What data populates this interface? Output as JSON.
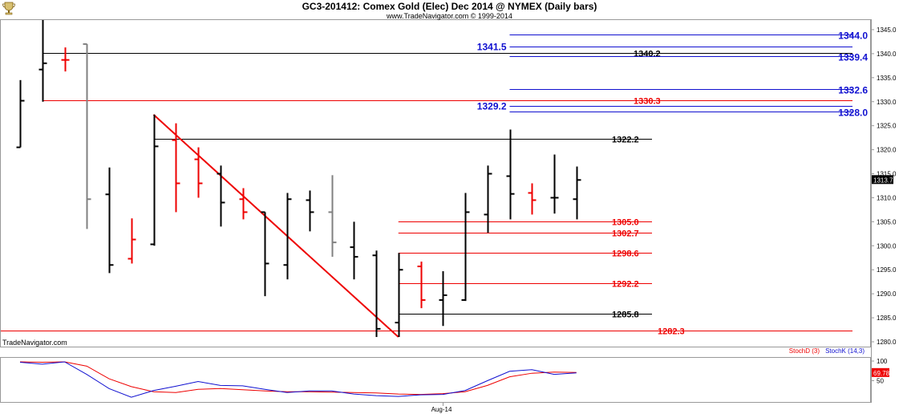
{
  "header": {
    "title": "GC3-201412:  Comex Gold (Elec) Dec 2014 @ NYMEX  (Daily bars)",
    "subtitle": "www.TradeNavigator.com © 1999-2014",
    "watermark": "TradeNavigator.com",
    "logo_icon": "trophy-icon"
  },
  "chart_data": [
    {
      "type": "ohlc",
      "ylim": [
        1279,
        1347
      ],
      "yticks": [
        "1345.0",
        "1340.0",
        "1335.0",
        "1330.0",
        "1325.0",
        "1320.0",
        "1315.0",
        "1310.0",
        "1305.0",
        "1300.0",
        "1295.0",
        "1290.0",
        "1285.0",
        "1280.0"
      ],
      "xticks": [
        {
          "label": "Aug-14",
          "bar": 19
        }
      ],
      "last_price": "1313.7",
      "colors": {
        "up": "#000000",
        "down": "#ee0000",
        "neutral": "#808080"
      },
      "bars": [
        {
          "o": 1320.5,
          "h": 1334.5,
          "l": 1320.5,
          "c": 1330.2,
          "color": "up"
        },
        {
          "o": 1336.7,
          "h": 1347.0,
          "l": 1330.0,
          "c": 1338.0,
          "color": "up"
        },
        {
          "o": 1338.7,
          "h": 1341.3,
          "l": 1336.3,
          "c": 1338.7,
          "color": "down"
        },
        {
          "o": 1342.0,
          "h": 1342.0,
          "l": 1303.5,
          "c": 1309.7,
          "color": "neutral"
        },
        {
          "o": 1310.7,
          "h": 1316.3,
          "l": 1294.3,
          "c": 1296.0,
          "color": "up"
        },
        {
          "o": 1297.3,
          "h": 1305.7,
          "l": 1296.3,
          "c": 1301.3,
          "color": "down"
        },
        {
          "o": 1300.3,
          "h": 1327.3,
          "l": 1300.0,
          "c": 1320.7,
          "color": "up"
        },
        {
          "o": 1322.0,
          "h": 1325.5,
          "l": 1307.0,
          "c": 1313.0,
          "color": "down"
        },
        {
          "o": 1318.0,
          "h": 1320.5,
          "l": 1310.0,
          "c": 1313.0,
          "color": "down"
        },
        {
          "o": 1315.0,
          "h": 1316.7,
          "l": 1304.0,
          "c": 1309.0,
          "color": "up"
        },
        {
          "o": 1309.7,
          "h": 1312.0,
          "l": 1305.5,
          "c": 1307.0,
          "color": "down"
        },
        {
          "o": 1307.0,
          "h": 1307.0,
          "l": 1289.5,
          "c": 1296.3,
          "color": "up"
        },
        {
          "o": 1296.0,
          "h": 1311.0,
          "l": 1293.0,
          "c": 1309.7,
          "color": "up"
        },
        {
          "o": 1309.5,
          "h": 1311.5,
          "l": 1303.0,
          "c": 1307.0,
          "color": "up"
        },
        {
          "o": 1307.0,
          "h": 1314.7,
          "l": 1297.7,
          "c": 1300.7,
          "color": "neutral"
        },
        {
          "o": 1299.7,
          "h": 1305.0,
          "l": 1293.0,
          "c": 1297.7,
          "color": "up"
        },
        {
          "o": 1298.0,
          "h": 1299.0,
          "l": 1281.0,
          "c": 1282.7,
          "color": "up"
        },
        {
          "o": 1284.0,
          "h": 1298.5,
          "l": 1281.0,
          "c": 1295.0,
          "color": "up"
        },
        {
          "o": 1295.7,
          "h": 1296.7,
          "l": 1287.0,
          "c": 1288.7,
          "color": "down"
        },
        {
          "o": 1288.7,
          "h": 1294.7,
          "l": 1283.3,
          "c": 1289.7,
          "color": "up"
        },
        {
          "o": 1288.7,
          "h": 1311.0,
          "l": 1288.5,
          "c": 1307.0,
          "color": "up"
        },
        {
          "o": 1306.5,
          "h": 1316.7,
          "l": 1302.7,
          "c": 1315.0,
          "color": "up"
        },
        {
          "o": 1314.5,
          "h": 1324.2,
          "l": 1305.5,
          "c": 1310.8,
          "color": "up"
        },
        {
          "o": 1311.0,
          "h": 1313.0,
          "l": 1306.5,
          "c": 1309.5,
          "color": "down"
        },
        {
          "o": 1310.0,
          "h": 1319.0,
          "l": 1306.7,
          "c": 1310.0,
          "color": "up"
        },
        {
          "o": 1309.7,
          "h": 1316.5,
          "l": 1305.5,
          "c": 1313.7,
          "color": "up"
        }
      ],
      "levels": [
        {
          "value": 1344.0,
          "label": "1344.0",
          "color": "#1010d0",
          "from_bar": 22,
          "label_side": "right"
        },
        {
          "value": 1341.5,
          "label": "1341.5",
          "color": "#1010d0",
          "from_bar": 22,
          "label_side": "left"
        },
        {
          "value": 1340.2,
          "label": "1340.2",
          "color": "#000000",
          "from_bar": 1,
          "label_side": "right"
        },
        {
          "value": 1339.4,
          "label": "1339.4",
          "color": "#1010d0",
          "from_bar": 22,
          "label_side": "right"
        },
        {
          "value": 1332.6,
          "label": "1332.6",
          "color": "#1010d0",
          "from_bar": 22,
          "label_side": "right"
        },
        {
          "value": 1330.3,
          "label": "1330.3",
          "color": "#ee0000",
          "from_bar": 1,
          "label_side": "right"
        },
        {
          "value": 1329.2,
          "label": "1329.2",
          "color": "#1010d0",
          "from_bar": 22,
          "label_side": "left"
        },
        {
          "value": 1328.0,
          "label": "1328.0",
          "color": "#1010d0",
          "from_bar": 22,
          "label_side": "right"
        },
        {
          "value": 1322.2,
          "label": "1322.2",
          "color": "#000000",
          "from_bar": 6,
          "label_side": "right"
        },
        {
          "value": 1305.0,
          "label": "1305.0",
          "color": "#ee0000",
          "from_bar": 17,
          "label_side": "right"
        },
        {
          "value": 1302.7,
          "label": "1302.7",
          "color": "#ee0000",
          "from_bar": 17,
          "label_side": "right"
        },
        {
          "value": 1298.6,
          "label": "1298.6",
          "color": "#ee0000",
          "from_bar": 17,
          "label_side": "right"
        },
        {
          "value": 1292.2,
          "label": "1292.2",
          "color": "#ee0000",
          "from_bar": 17,
          "label_side": "right"
        },
        {
          "value": 1285.8,
          "label": "1285.8",
          "color": "#000000",
          "from_bar": 17,
          "label_side": "right"
        },
        {
          "value": 1282.3,
          "label": "1282.3",
          "color": "#ee0000",
          "from_bar": -1,
          "label_side": "right"
        }
      ],
      "trendline": {
        "from": {
          "bar": 6,
          "value": 1327.3
        },
        "to": {
          "bar": 17,
          "value": 1281.0
        },
        "color": "#ee0000"
      }
    },
    {
      "type": "line",
      "ylim": [
        0,
        100
      ],
      "yticks": [
        "100",
        "50"
      ],
      "last_value": "69.78",
      "series": [
        {
          "name": "StochD (3)",
          "color": "#ee0000",
          "values": [
            98,
            97,
            98,
            87,
            55,
            35,
            22,
            20,
            28,
            30,
            27,
            24,
            22,
            22,
            21,
            20,
            19,
            16,
            15,
            17,
            22,
            38,
            60,
            69,
            72,
            71
          ]
        },
        {
          "name": "StochK (14,3)",
          "color": "#1010d0",
          "values": [
            97,
            92,
            98,
            66,
            30,
            8,
            25,
            36,
            48,
            38,
            37,
            28,
            20,
            24,
            24,
            16,
            12,
            10,
            14,
            15,
            25,
            50,
            74,
            78,
            66,
            69.8
          ]
        }
      ]
    }
  ]
}
